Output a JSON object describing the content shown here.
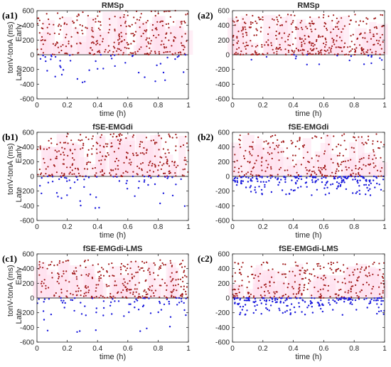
{
  "chart_data": [
    {
      "id": "a1",
      "type": "scatter",
      "panel_label": "(a1)",
      "title": "RMSp",
      "xlabel": "time (h)",
      "ylabel": "tonV-tonA (ms)",
      "ylabel_top": "Early",
      "ylabel_bottom": "Late",
      "xlim": [
        0,
        1
      ],
      "ylim": [
        -600,
        600
      ],
      "xticks": [
        "0",
        "0.2",
        "0.4",
        "0.6",
        "0.8",
        "1"
      ],
      "yticks": [
        "600",
        "400",
        "200",
        "0",
        "-200",
        "-400",
        "-600"
      ],
      "n_positive": 300,
      "n_negative": 45,
      "pos_max": 600,
      "neg_min": -400
    },
    {
      "id": "a2",
      "type": "scatter",
      "panel_label": "(a2)",
      "title": "RMSp",
      "xlabel": "time (h)",
      "ylabel": "",
      "ylabel_top": "",
      "ylabel_bottom": "",
      "xlim": [
        0,
        1
      ],
      "ylim": [
        -600,
        600
      ],
      "xticks": [
        "0",
        "0.2",
        "0.4",
        "0.6",
        "0.8",
        "1"
      ],
      "yticks": [
        "600",
        "400",
        "200",
        "0",
        "-200",
        "-400",
        "-600"
      ],
      "n_positive": 380,
      "n_negative": 18,
      "pos_max": 550,
      "neg_min": -140
    },
    {
      "id": "b1",
      "type": "scatter",
      "panel_label": "(b1)",
      "title": "fSE-EMGdi",
      "xlabel": "time (h)",
      "ylabel": "tonV-tonA (ms)",
      "ylabel_top": "Early",
      "ylabel_bottom": "Late",
      "xlim": [
        0,
        1
      ],
      "ylim": [
        -600,
        600
      ],
      "xticks": [
        "0",
        "0.2",
        "0.4",
        "0.6",
        "0.8",
        "1"
      ],
      "yticks": [
        "600",
        "400",
        "200",
        "0",
        "-200",
        "-400",
        "-600"
      ],
      "n_positive": 300,
      "n_negative": 60,
      "pos_max": 580,
      "neg_min": -440
    },
    {
      "id": "b2",
      "type": "scatter",
      "panel_label": "(b2)",
      "title": "fSE-EMGdi",
      "xlabel": "time (h)",
      "ylabel": "",
      "ylabel_top": "",
      "ylabel_bottom": "",
      "xlim": [
        0,
        1
      ],
      "ylim": [
        -600,
        600
      ],
      "xticks": [
        "0",
        "0.2",
        "0.4",
        "0.6",
        "0.8",
        "1"
      ],
      "yticks": [
        "600",
        "400",
        "200",
        "0",
        "-200",
        "-400",
        "-600"
      ],
      "n_positive": 260,
      "n_negative": 200,
      "pos_max": 580,
      "neg_min": -260
    },
    {
      "id": "c1",
      "type": "scatter",
      "panel_label": "(c1)",
      "title": "fSE-EMGdi-LMS",
      "xlabel": "time (h)",
      "ylabel": "tonV-tonA (ms)",
      "ylabel_top": "Early",
      "ylabel_bottom": "Late",
      "xlim": [
        0,
        1
      ],
      "ylim": [
        -600,
        600
      ],
      "xticks": [
        "0",
        "0.2",
        "0.4",
        "0.6",
        "0.8",
        "1"
      ],
      "yticks": [
        "600",
        "400",
        "200",
        "0",
        "-200",
        "-400",
        "-600"
      ],
      "n_positive": 300,
      "n_negative": 75,
      "pos_max": 520,
      "neg_min": -470
    },
    {
      "id": "c2",
      "type": "scatter",
      "panel_label": "(c2)",
      "title": "fSE-EMGdi-LMS",
      "xlabel": "time (h)",
      "ylabel": "",
      "ylabel_top": "",
      "ylabel_bottom": "",
      "xlim": [
        0,
        1
      ],
      "ylim": [
        -600,
        600
      ],
      "xticks": [
        "0",
        "0.2",
        "0.4",
        "0.6",
        "0.8",
        "1"
      ],
      "yticks": [
        "600",
        "400",
        "200",
        "0",
        "-200",
        "-400",
        "-600"
      ],
      "n_positive": 270,
      "n_negative": 180,
      "pos_max": 490,
      "neg_min": -230
    }
  ],
  "colors": {
    "early_points": "#a01818",
    "late_points": "#1a1adc",
    "early_band": "#ffe0ee",
    "zero_line": "#3a3a3a"
  }
}
